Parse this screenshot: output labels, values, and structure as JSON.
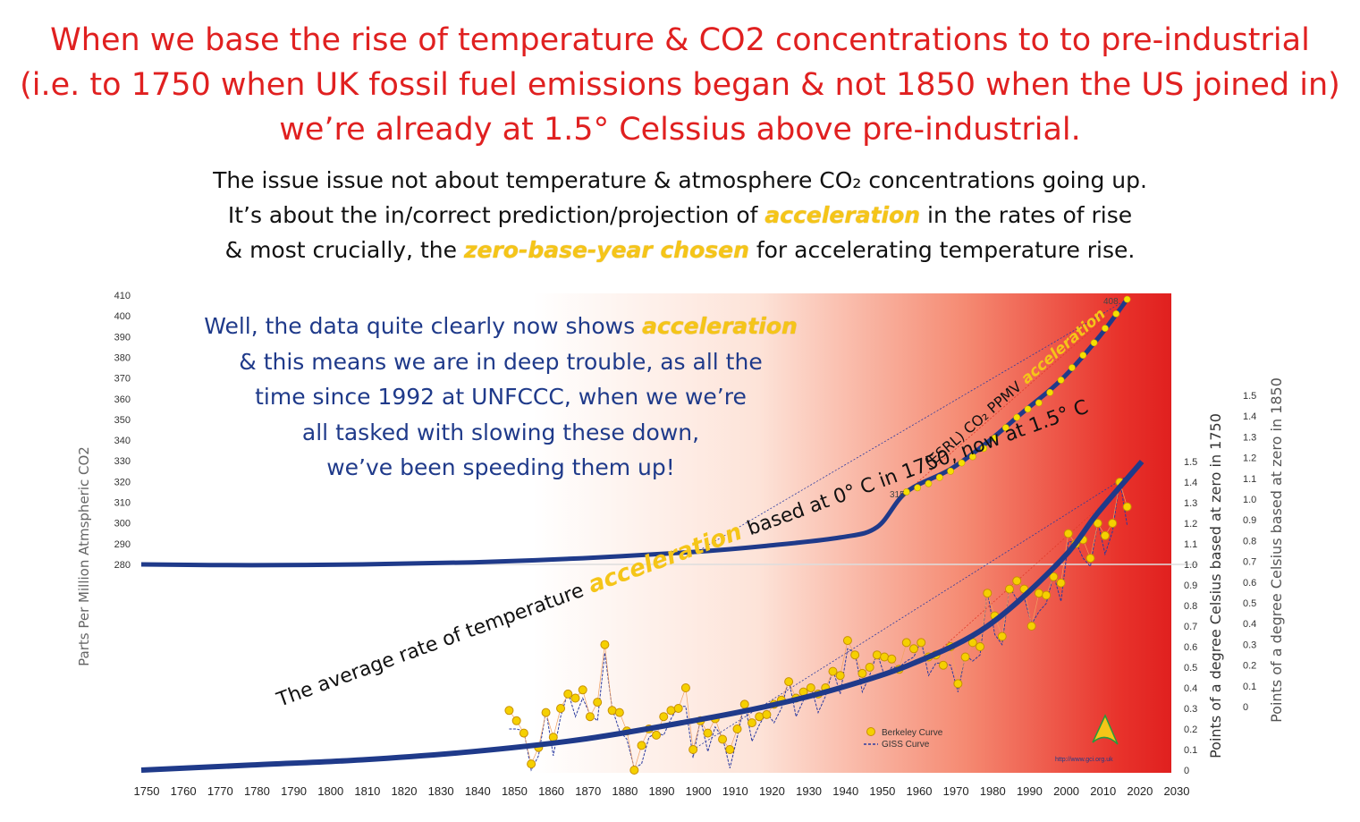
{
  "headline": {
    "line1": "When we base the rise of temperature & CO2 concentrations to to pre-industrial",
    "line2": "(i.e. to 1750 when UK fossil fuel emissions began & not 1850 when the US joined in)",
    "line3": "we’re already at 1.5° Celssius above pre-industrial."
  },
  "subtitle": {
    "line1": "The issue issue not about temperature & atmosphere CO₂ concentrations going up.",
    "line2_a": "It’s about the in/correct prediction/projection of ",
    "line2_hl": "acceleration",
    "line2_b": " in the rates of rise",
    "line3_a": "& most crucially, the ",
    "line3_hl": "zero-base-year chosen",
    "line3_b": " for accelerating temperature rise."
  },
  "callout": {
    "line1_a": "Well, the data quite clearly now shows ",
    "line1_hl": "acceleration",
    "line2": "& this means we are in deep trouble, as all the",
    "line3": "time since 1992 at UNFCCC, when we we’re",
    "line4": "all tasked with slowing these down,",
    "line5": "we’ve been speeding them up!"
  },
  "chart_data": {
    "type": "line",
    "xlabel": "",
    "ylabel_left": "Parts Per Million Atmspheric CO2",
    "ylabel_right1": "Points of a degree Celsius based at zero in 1750",
    "ylabel_right2": "Points of a degree Celsius based at zero in 1850",
    "xlim": [
      1750,
      2030
    ],
    "x_ticks": [
      1750,
      1760,
      1770,
      1780,
      1790,
      1800,
      1810,
      1820,
      1830,
      1840,
      1850,
      1860,
      1870,
      1880,
      1890,
      1900,
      1910,
      1920,
      1930,
      1940,
      1950,
      1960,
      1970,
      1980,
      1990,
      2000,
      2010,
      2020,
      2030
    ],
    "y_left_ticks": [
      280,
      290,
      300,
      310,
      320,
      330,
      340,
      350,
      360,
      370,
      380,
      390,
      400,
      410
    ],
    "y_right1_ticks": [
      "0",
      "0.1",
      "0.2",
      "0.3",
      "0.4",
      "0.5",
      "0.6",
      "0.7",
      "0.8",
      "0.9",
      "1.0",
      "1.1",
      "1.2",
      "1.3",
      "1.4",
      "1.5"
    ],
    "y_right2_ticks": [
      "0",
      "0.1",
      "0.2",
      "0.3",
      "0.4",
      "0.5",
      "0.6",
      "0.7",
      "0.8",
      "0.9",
      "1.0",
      "1.1",
      "1.2",
      "1.3",
      "1.4",
      "1.5"
    ],
    "co2_curve": {
      "label": "(ESRL) CO₂ PPMV",
      "label_hl": "acceleration",
      "x": [
        1750,
        1780,
        1810,
        1840,
        1870,
        1900,
        1920,
        1940,
        1950,
        1958,
        1970,
        1980,
        1990,
        2000,
        2010,
        2018
      ],
      "y": [
        280,
        279.6,
        280,
        281,
        283,
        286,
        289,
        293,
        298,
        315,
        326,
        339,
        354,
        369,
        389,
        408
      ]
    },
    "co2_observed": {
      "x": [
        1958,
        1961,
        1964,
        1967,
        1970,
        1973,
        1976,
        1979,
        1982,
        1985,
        1988,
        1991,
        1994,
        1997,
        2000,
        2003,
        2006,
        2009,
        2012,
        2015,
        2018
      ],
      "y": [
        315,
        317,
        319,
        322,
        325,
        329,
        332,
        336,
        341,
        346,
        351,
        355,
        358,
        363,
        369,
        375,
        381,
        387,
        394,
        401,
        408
      ]
    },
    "co2_label_start": "315",
    "co2_label_end": "408",
    "temp_trend": {
      "label": "The average rate of temperature",
      "label_hl": "acceleration",
      "label_b": "based at 0° C in 1750, now at 1.5° C",
      "x": [
        1750,
        1780,
        1810,
        1840,
        1870,
        1900,
        1920,
        1940,
        1960,
        1980,
        2000,
        2010,
        2022
      ],
      "y": [
        0,
        0.025,
        0.05,
        0.09,
        0.15,
        0.24,
        0.31,
        0.4,
        0.52,
        0.7,
        1.02,
        1.25,
        1.5
      ]
    },
    "berkeley": {
      "name": "Berkeley Curve",
      "x": [
        1850,
        1852,
        1854,
        1856,
        1858,
        1860,
        1862,
        1864,
        1866,
        1868,
        1870,
        1872,
        1874,
        1876,
        1878,
        1880,
        1882,
        1884,
        1886,
        1888,
        1890,
        1892,
        1894,
        1896,
        1898,
        1900,
        1902,
        1904,
        1906,
        1908,
        1910,
        1912,
        1914,
        1916,
        1918,
        1920,
        1922,
        1924,
        1926,
        1928,
        1930,
        1932,
        1934,
        1936,
        1938,
        1940,
        1942,
        1944,
        1946,
        1948,
        1950,
        1952,
        1954,
        1956,
        1958,
        1960,
        1962,
        1964,
        1966,
        1968,
        1970,
        1972,
        1974,
        1976,
        1978,
        1980,
        1982,
        1984,
        1986,
        1988,
        1990,
        1992,
        1994,
        1996,
        1998,
        2000,
        2002,
        2004,
        2006,
        2008,
        2010,
        2012,
        2014,
        2016,
        2018
      ],
      "y": [
        0.29,
        0.24,
        0.18,
        0.03,
        0.11,
        0.28,
        0.16,
        0.3,
        0.37,
        0.35,
        0.39,
        0.26,
        0.33,
        0.61,
        0.29,
        0.28,
        0.19,
        0.0,
        0.12,
        0.2,
        0.17,
        0.26,
        0.29,
        0.3,
        0.4,
        0.1,
        0.24,
        0.18,
        0.25,
        0.15,
        0.1,
        0.2,
        0.32,
        0.23,
        0.26,
        0.27,
        0.32,
        0.34,
        0.43,
        0.35,
        0.38,
        0.4,
        0.37,
        0.4,
        0.48,
        0.46,
        0.63,
        0.56,
        0.47,
        0.5,
        0.56,
        0.55,
        0.54,
        0.49,
        0.62,
        0.59,
        0.62,
        0.55,
        0.56,
        0.51,
        0.6,
        0.42,
        0.55,
        0.62,
        0.6,
        0.86,
        0.75,
        0.65,
        0.88,
        0.92,
        0.88,
        0.7,
        0.86,
        0.85,
        0.94,
        0.91,
        1.15,
        1.1,
        1.12,
        1.03,
        1.2,
        1.14,
        1.2,
        1.4,
        1.28
      ]
    },
    "giss": {
      "name": "GISS Curve"
    },
    "watermark": "http://www.gci.org.uk"
  }
}
